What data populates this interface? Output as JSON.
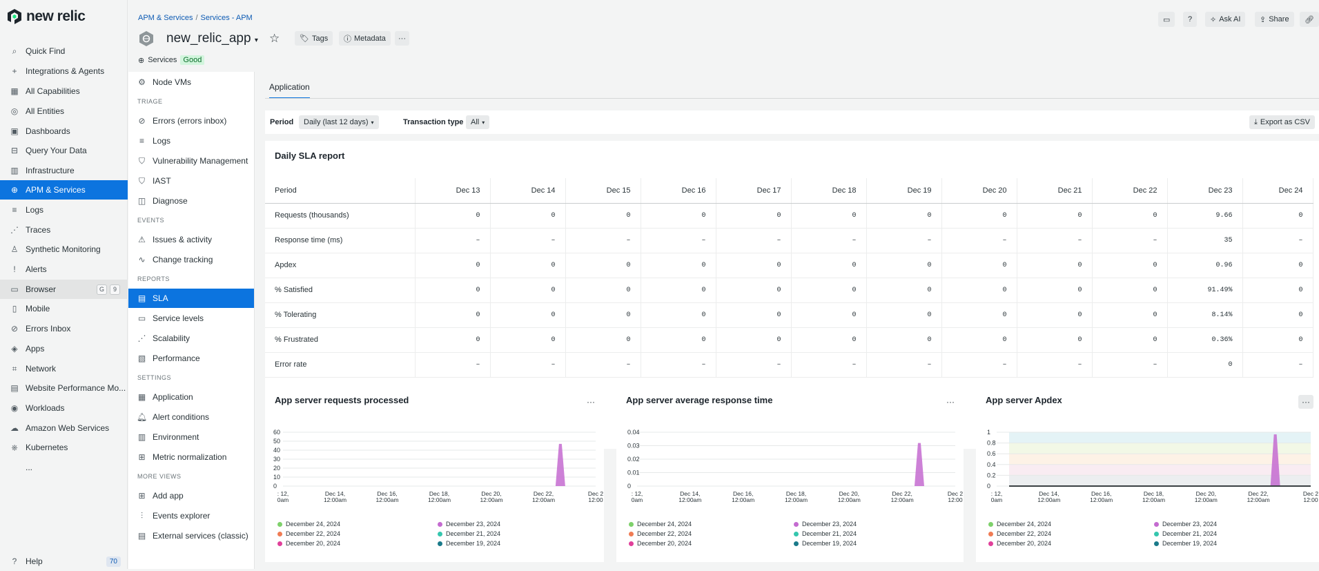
{
  "brand": {
    "name": "new relic"
  },
  "nav": {
    "items": [
      {
        "label": "Quick Find",
        "icon": "search-icon"
      },
      {
        "label": "Integrations & Agents",
        "icon": "plus-icon"
      },
      {
        "label": "All Capabilities",
        "icon": "grid-icon"
      },
      {
        "label": "All Entities",
        "icon": "entities-icon"
      },
      {
        "label": "Dashboards",
        "icon": "dashboard-icon"
      },
      {
        "label": "Query Your Data",
        "icon": "query-icon"
      },
      {
        "label": "Infrastructure",
        "icon": "infrastructure-icon"
      },
      {
        "label": "APM & Services",
        "icon": "globe-icon"
      },
      {
        "label": "Logs",
        "icon": "logs-icon"
      },
      {
        "label": "Traces",
        "icon": "traces-icon"
      },
      {
        "label": "Synthetic Monitoring",
        "icon": "synthetic-icon"
      },
      {
        "label": "Alerts",
        "icon": "alert-icon"
      },
      {
        "label": "Browser",
        "icon": "browser-icon"
      },
      {
        "label": "Mobile",
        "icon": "mobile-icon"
      },
      {
        "label": "Errors Inbox",
        "icon": "inbox-icon"
      },
      {
        "label": "Apps",
        "icon": "apps-icon"
      },
      {
        "label": "Network",
        "icon": "network-icon"
      },
      {
        "label": "Website Performance Mo...",
        "icon": "website-icon"
      },
      {
        "label": "Workloads",
        "icon": "workloads-icon"
      },
      {
        "label": "Amazon Web Services",
        "icon": "cloud-icon"
      },
      {
        "label": "Kubernetes",
        "icon": "kubernetes-icon"
      },
      {
        "label": "...",
        "icon": "more-icon"
      }
    ],
    "browser_keys": [
      "G",
      "9"
    ],
    "help": "Help",
    "help_count": "70"
  },
  "header": {
    "breadcrumb": [
      "APM & Services",
      "Services - APM"
    ],
    "app_name": "new_relic_app",
    "tags": "Tags",
    "metadata": "Metadata",
    "more": "···",
    "entity_type": "Services",
    "status": "Good",
    "ask_ai": "Ask AI",
    "share": "Share"
  },
  "subnav": {
    "top_item": "Node VMs",
    "sections": [
      {
        "heading": "TRIAGE",
        "items": [
          "Errors (errors inbox)",
          "Logs",
          "Vulnerability Management",
          "IAST",
          "Diagnose"
        ]
      },
      {
        "heading": "EVENTS",
        "items": [
          "Issues & activity",
          "Change tracking"
        ]
      },
      {
        "heading": "REPORTS",
        "items": [
          "SLA",
          "Service levels",
          "Scalability",
          "Performance"
        ]
      },
      {
        "heading": "SETTINGS",
        "items": [
          "Application",
          "Alert conditions",
          "Environment",
          "Metric normalization"
        ]
      },
      {
        "heading": "MORE VIEWS",
        "items": [
          "Add app",
          "Events explorer",
          "External services (classic)"
        ]
      }
    ]
  },
  "main": {
    "tab": "Application",
    "filters": {
      "period_label": "Period",
      "period_value": "Daily (last 12 days)",
      "txn_label": "Transaction type",
      "txn_value": "All",
      "export": "Export as CSV"
    },
    "sla": {
      "title": "Daily SLA report",
      "columns": [
        "Period",
        "Dec 13",
        "Dec 14",
        "Dec 15",
        "Dec 16",
        "Dec 17",
        "Dec 18",
        "Dec 19",
        "Dec 20",
        "Dec 21",
        "Dec 22",
        "Dec 23",
        "Dec 24"
      ],
      "rows": [
        [
          "Requests (thousands)",
          "0",
          "0",
          "0",
          "0",
          "0",
          "0",
          "0",
          "0",
          "0",
          "0",
          "9.66",
          "0"
        ],
        [
          "Response time (ms)",
          "–",
          "–",
          "–",
          "–",
          "–",
          "–",
          "–",
          "–",
          "–",
          "–",
          "35",
          "–"
        ],
        [
          "Apdex",
          "0",
          "0",
          "0",
          "0",
          "0",
          "0",
          "0",
          "0",
          "0",
          "0",
          "0.96",
          "0"
        ],
        [
          "% Satisfied",
          "0",
          "0",
          "0",
          "0",
          "0",
          "0",
          "0",
          "0",
          "0",
          "0",
          "91.49%",
          "0"
        ],
        [
          "% Tolerating",
          "0",
          "0",
          "0",
          "0",
          "0",
          "0",
          "0",
          "0",
          "0",
          "0",
          "8.14%",
          "0"
        ],
        [
          "% Frustrated",
          "0",
          "0",
          "0",
          "0",
          "0",
          "0",
          "0",
          "0",
          "0",
          "0",
          "0.36%",
          "0"
        ],
        [
          "Error rate",
          "–",
          "–",
          "–",
          "–",
          "–",
          "–",
          "–",
          "–",
          "–",
          "–",
          "0",
          "–"
        ]
      ]
    }
  },
  "chart_data": [
    {
      "type": "area",
      "title": "App server requests processed",
      "x": [
        ": 12,\n0am",
        "Dec 14,\n12:00am",
        "Dec 16,\n12:00am",
        "Dec 18,\n12:00am",
        "Dec 20,\n12:00am",
        "Dec 22,\n12:00am",
        "Dec 2\n12:00"
      ],
      "yticks": [
        "60",
        "50",
        "40",
        "30",
        "20",
        "10",
        "0"
      ],
      "ylim": [
        0,
        60
      ],
      "series": [
        {
          "name": "December 23, 2024",
          "color": "#c46bd0",
          "peak_at": "Dec 23",
          "peak": 47
        }
      ],
      "legend": [
        {
          "name": "December 24, 2024",
          "color": "#7ed16b"
        },
        {
          "name": "December 23, 2024",
          "color": "#c46bd0"
        },
        {
          "name": "December 22, 2024",
          "color": "#f07c54"
        },
        {
          "name": "December 21, 2024",
          "color": "#35c6ae"
        },
        {
          "name": "December 20, 2024",
          "color": "#e0409a"
        },
        {
          "name": "December 19, 2024",
          "color": "#1a7a8a"
        }
      ]
    },
    {
      "type": "area",
      "title": "App server average response time",
      "x": [
        ": 12,\n0am",
        "Dec 14,\n12:00am",
        "Dec 16,\n12:00am",
        "Dec 18,\n12:00am",
        "Dec 20,\n12:00am",
        "Dec 22,\n12:00am",
        "Dec 2\n12:00"
      ],
      "yticks": [
        "0.04",
        "0.03",
        "0.02",
        "0.01",
        "0"
      ],
      "ylim": [
        0,
        0.04
      ],
      "series": [
        {
          "name": "December 23, 2024",
          "color": "#c46bd0",
          "peak_at": "Dec 23",
          "peak": 0.032
        }
      ],
      "legend": [
        {
          "name": "December 24, 2024",
          "color": "#7ed16b"
        },
        {
          "name": "December 23, 2024",
          "color": "#c46bd0"
        },
        {
          "name": "December 22, 2024",
          "color": "#f07c54"
        },
        {
          "name": "December 21, 2024",
          "color": "#35c6ae"
        },
        {
          "name": "December 20, 2024",
          "color": "#e0409a"
        },
        {
          "name": "December 19, 2024",
          "color": "#1a7a8a"
        }
      ]
    },
    {
      "type": "area",
      "title": "App server Apdex",
      "x": [
        ": 12,\n0am",
        "Dec 14,\n12:00am",
        "Dec 16,\n12:00am",
        "Dec 18,\n12:00am",
        "Dec 20,\n12:00am",
        "Dec 22,\n12:00am",
        "Dec 2\n12:00"
      ],
      "yticks": [
        "1",
        "0.8",
        "0.6",
        "0.4",
        "0.2",
        "0"
      ],
      "ylim": [
        0,
        1
      ],
      "series": [
        {
          "name": "December 23, 2024",
          "color": "#c46bd0",
          "peak_at": "Dec 23",
          "peak": 0.96
        }
      ],
      "legend": [
        {
          "name": "December 24, 2024",
          "color": "#7ed16b"
        },
        {
          "name": "December 23, 2024",
          "color": "#c46bd0"
        },
        {
          "name": "December 22, 2024",
          "color": "#f07c54"
        },
        {
          "name": "December 21, 2024",
          "color": "#35c6ae"
        },
        {
          "name": "December 20, 2024",
          "color": "#e0409a"
        },
        {
          "name": "December 19, 2024",
          "color": "#1a7a8a"
        }
      ]
    }
  ]
}
